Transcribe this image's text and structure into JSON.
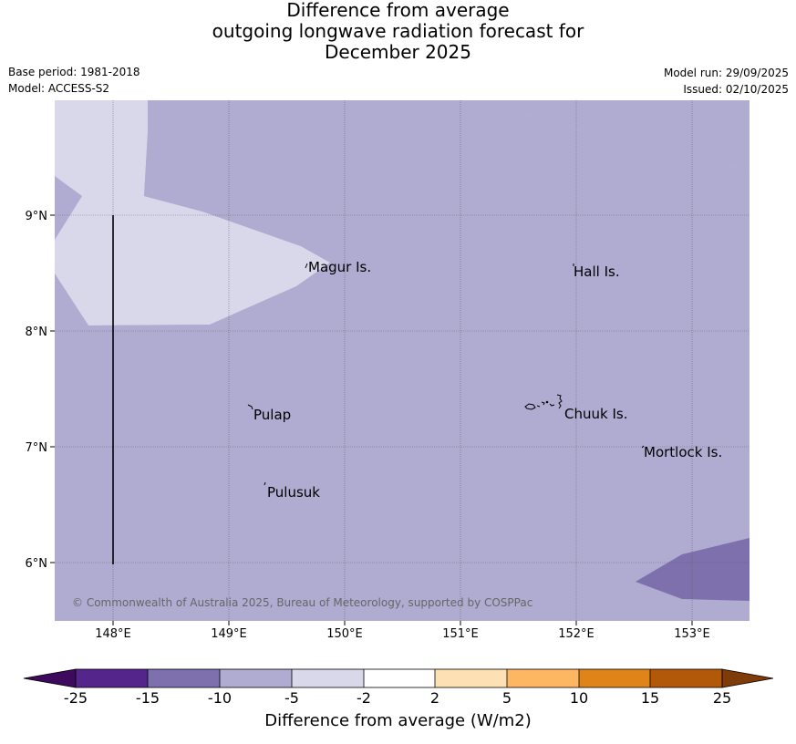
{
  "title": {
    "line1": "Difference from average",
    "line2": "outgoing longwave radiation forecast for",
    "line3": "December 2025"
  },
  "meta": {
    "base_period": "Base period: 1981-2018",
    "model": "Model: ACCESS-S2",
    "model_run": "Model run: 29/09/2025",
    "issued": "Issued: 02/10/2025"
  },
  "map": {
    "lat_labels": [
      "9°N",
      "8°N",
      "7°N",
      "6°N"
    ],
    "lon_labels": [
      "148°E",
      "149°E",
      "150°E",
      "151°E",
      "152°E",
      "153°E"
    ],
    "places": {
      "magur": "Magur Is.",
      "hall": "Hall Is.",
      "pulap": "Pulap",
      "chuuk": "Chuuk Is.",
      "mortlock": "Mortlock Is.",
      "pulusuk": "Pulusuk"
    },
    "copyright": "© Commonwealth of Australia 2025, Bureau of Meteorology, supported by COSPPac",
    "colors": {
      "neg_15_10": "#7e70ad",
      "neg_10_5": "#b0abd1",
      "neg_5_2": "#d8d8ea"
    }
  },
  "colorbar": {
    "ticks": [
      "-25",
      "-15",
      "-10",
      "-5",
      "-2",
      "2",
      "5",
      "10",
      "15",
      "25"
    ],
    "title": "Difference from average (W/m2)",
    "colors": [
      "#3e0a5e",
      "#54258a",
      "#7e70ad",
      "#b0abd1",
      "#d8d8ea",
      "#ffffff",
      "#fde0b4",
      "#fdb661",
      "#e0841a",
      "#b25909",
      "#7f3b08"
    ]
  }
}
